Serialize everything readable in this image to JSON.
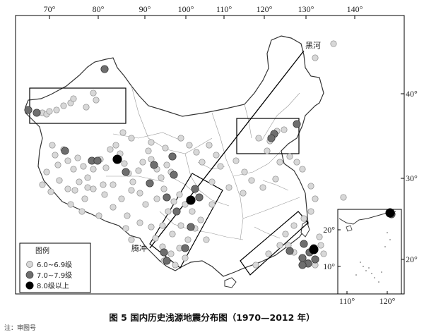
{
  "caption": "图 5 国内历史浅源地震分布图（1970—2012 年）",
  "cut_text": "注：审图号",
  "map": {
    "lon_ticks_top": [
      "70°",
      "80°",
      "90°",
      "100°",
      "110°",
      "120°",
      "130°",
      "140°"
    ],
    "lat_ticks_right": [
      "40°",
      "30°",
      "20°"
    ],
    "inset_lon_ticks": [
      "110°",
      "120°"
    ],
    "inset_lat_ticks": [
      "20°",
      "10°"
    ],
    "place_labels": {
      "heihe": "黑河",
      "tengchong": "腾冲"
    },
    "legend": {
      "title": "图例",
      "items": [
        {
          "label": "6.0~6.9级",
          "color": "#d8d8d8"
        },
        {
          "label": "7.0~7.9级",
          "color": "#6e6e6e"
        },
        {
          "label": "8.0级以上",
          "color": "#000000"
        }
      ]
    }
  }
}
